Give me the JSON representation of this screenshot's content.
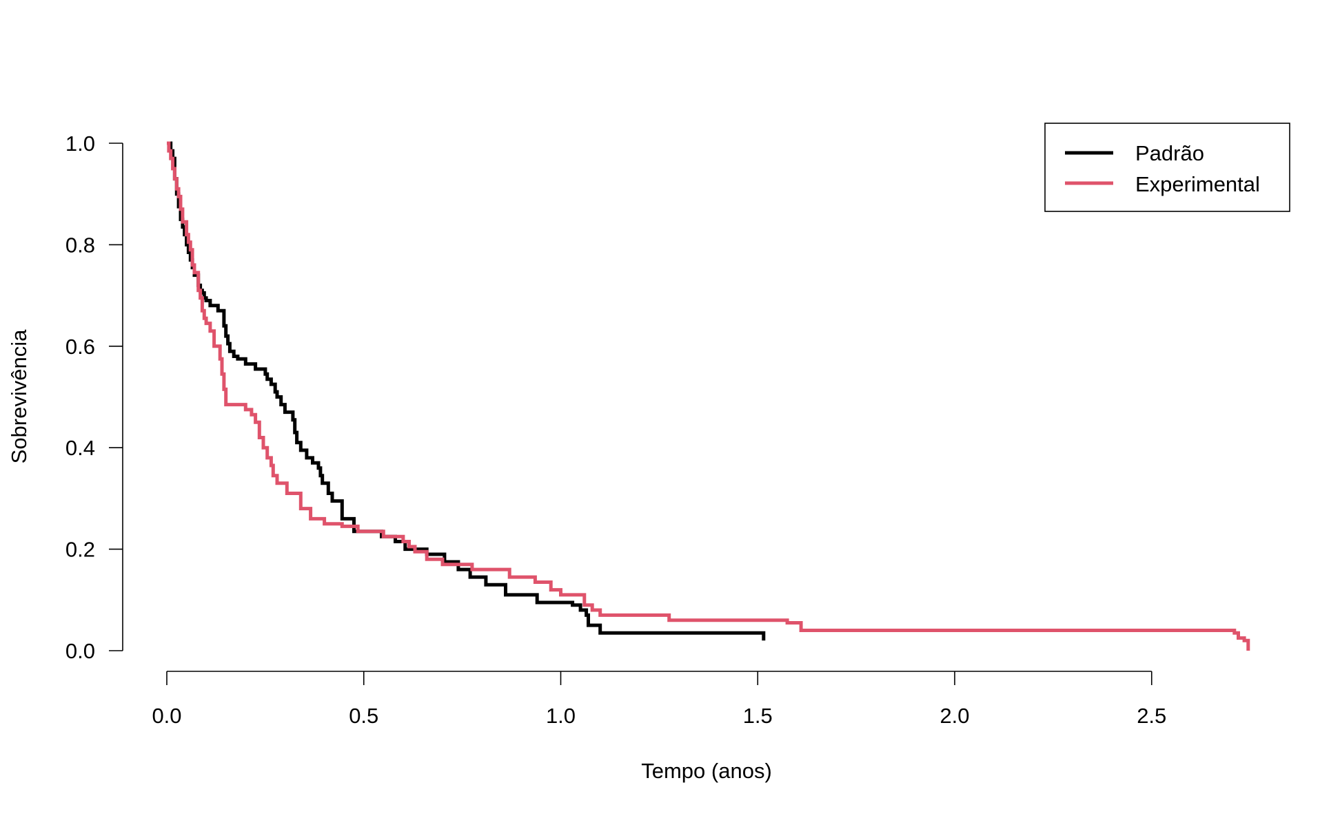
{
  "chart_data": {
    "type": "line",
    "subtype": "step",
    "title": "",
    "xlabel": "Tempo (anos)",
    "ylabel": "Sobrevivência",
    "xlim": [
      0,
      2.75
    ],
    "ylim": [
      0,
      1
    ],
    "x_ticks": [
      "0.0",
      "0.5",
      "1.0",
      "1.5",
      "2.0",
      "2.5"
    ],
    "y_ticks": [
      "0.0",
      "0.2",
      "0.4",
      "0.6",
      "0.8",
      "1.0"
    ],
    "grid": false,
    "legend_position": "top-right",
    "series": [
      {
        "name": "Padrão",
        "color": "#000000",
        "x": [
          0,
          0.01,
          0.015,
          0.02,
          0.025,
          0.03,
          0.035,
          0.04,
          0.045,
          0.05,
          0.055,
          0.06,
          0.065,
          0.07,
          0.08,
          0.085,
          0.09,
          0.095,
          0.1,
          0.11,
          0.12,
          0.13,
          0.145,
          0.15,
          0.155,
          0.16,
          0.17,
          0.18,
          0.2,
          0.225,
          0.25,
          0.255,
          0.265,
          0.275,
          0.28,
          0.29,
          0.3,
          0.32,
          0.325,
          0.33,
          0.34,
          0.355,
          0.37,
          0.385,
          0.39,
          0.395,
          0.41,
          0.42,
          0.445,
          0.475,
          0.545,
          0.58,
          0.605,
          0.66,
          0.705,
          0.74,
          0.77,
          0.81,
          0.86,
          0.94,
          1.03,
          1.05,
          1.065,
          1.07,
          1.1,
          1.515
        ],
        "y": [
          1.0,
          0.985,
          0.97,
          0.93,
          0.9,
          0.875,
          0.85,
          0.835,
          0.82,
          0.8,
          0.785,
          0.77,
          0.755,
          0.74,
          0.72,
          0.71,
          0.705,
          0.695,
          0.69,
          0.68,
          0.68,
          0.67,
          0.64,
          0.62,
          0.605,
          0.59,
          0.58,
          0.575,
          0.565,
          0.555,
          0.545,
          0.535,
          0.525,
          0.51,
          0.5,
          0.485,
          0.47,
          0.455,
          0.43,
          0.41,
          0.395,
          0.38,
          0.37,
          0.36,
          0.345,
          0.33,
          0.31,
          0.295,
          0.26,
          0.235,
          0.225,
          0.215,
          0.2,
          0.19,
          0.175,
          0.16,
          0.145,
          0.13,
          0.11,
          0.095,
          0.09,
          0.08,
          0.07,
          0.05,
          0.035,
          0.02
        ]
      },
      {
        "name": "Experimental",
        "color": "#df536b",
        "x": [
          0,
          0.005,
          0.01,
          0.015,
          0.02,
          0.025,
          0.03,
          0.035,
          0.04,
          0.05,
          0.055,
          0.06,
          0.065,
          0.07,
          0.08,
          0.085,
          0.09,
          0.095,
          0.1,
          0.11,
          0.12,
          0.135,
          0.14,
          0.145,
          0.15,
          0.2,
          0.215,
          0.225,
          0.235,
          0.245,
          0.255,
          0.265,
          0.27,
          0.28,
          0.305,
          0.34,
          0.365,
          0.4,
          0.445,
          0.485,
          0.55,
          0.6,
          0.615,
          0.63,
          0.66,
          0.7,
          0.775,
          0.87,
          0.935,
          0.975,
          1.0,
          1.06,
          1.08,
          1.1,
          1.19,
          1.275,
          1.575,
          1.61,
          2.71,
          2.72,
          2.735,
          2.745
        ],
        "y": [
          1.0,
          0.985,
          0.97,
          0.95,
          0.93,
          0.91,
          0.895,
          0.87,
          0.845,
          0.82,
          0.805,
          0.79,
          0.76,
          0.745,
          0.71,
          0.695,
          0.67,
          0.655,
          0.645,
          0.63,
          0.6,
          0.575,
          0.545,
          0.515,
          0.485,
          0.475,
          0.465,
          0.45,
          0.42,
          0.4,
          0.38,
          0.365,
          0.345,
          0.33,
          0.31,
          0.28,
          0.26,
          0.25,
          0.245,
          0.235,
          0.225,
          0.215,
          0.205,
          0.195,
          0.18,
          0.17,
          0.16,
          0.145,
          0.135,
          0.12,
          0.11,
          0.09,
          0.08,
          0.07,
          0.07,
          0.06,
          0.055,
          0.04,
          0.035,
          0.025,
          0.02,
          0.0
        ]
      }
    ]
  }
}
